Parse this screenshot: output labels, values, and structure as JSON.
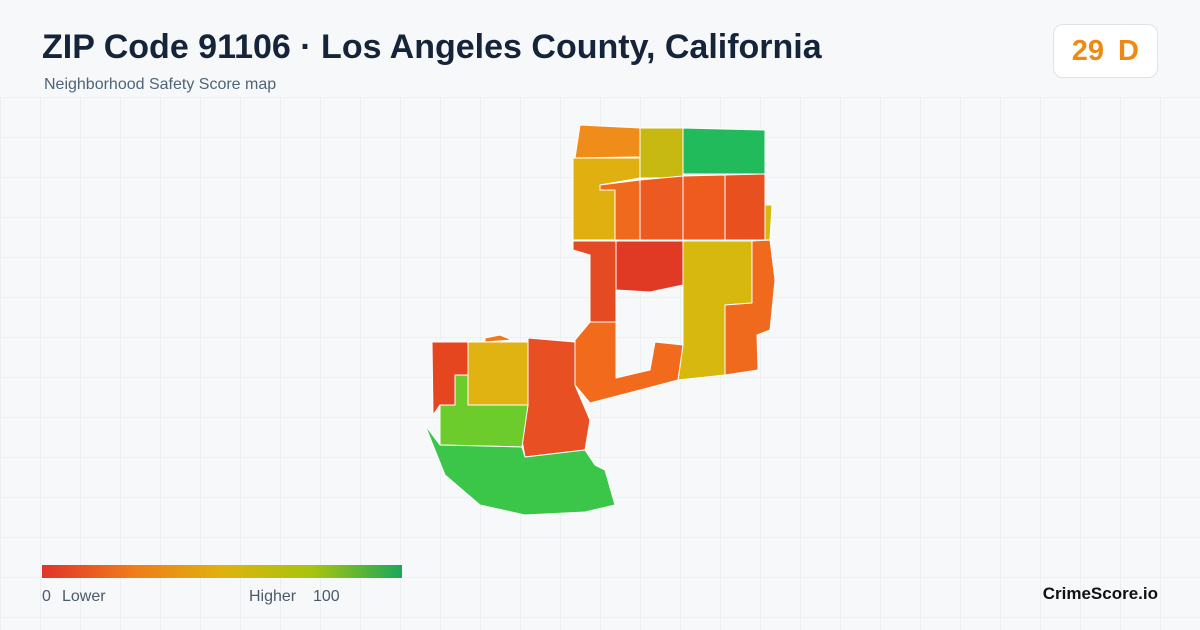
{
  "header": {
    "title": "ZIP Code 91106 · Los Angeles County, California",
    "subtitle": "Neighborhood Safety Score map"
  },
  "badge": {
    "score": "29",
    "grade": "D"
  },
  "legend": {
    "min": "0",
    "low_label": "Lower",
    "high_label": "Higher",
    "max": "100"
  },
  "brand": "CrimeScore.io"
}
